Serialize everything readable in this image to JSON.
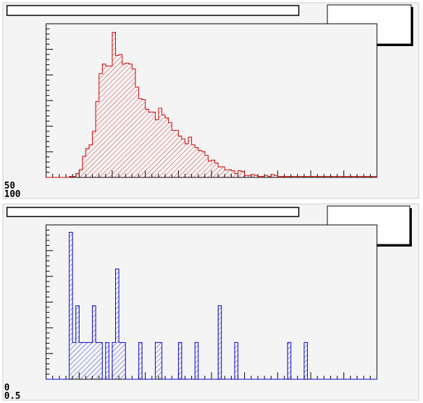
{
  "colors": {
    "pad_background": "#f4f4f4",
    "frame": "#000000",
    "top_series": "#cc0000",
    "bottom_series": "#0000cc"
  },
  "chart_data": [
    {
      "type": "bar",
      "title": "",
      "xlabel": "",
      "ylabel": "",
      "fill_style": "hatched",
      "tick_labels": [
        "50",
        "100"
      ],
      "values": [
        0,
        0,
        0,
        0,
        0,
        0,
        0,
        1,
        1,
        4,
        8,
        22,
        30,
        34,
        48,
        79,
        108,
        118,
        116,
        116,
        151,
        127,
        128,
        118,
        119,
        118,
        113,
        94,
        82,
        81,
        71,
        68,
        68,
        60,
        72,
        65,
        62,
        57,
        49,
        49,
        43,
        40,
        35,
        42,
        34,
        31,
        28,
        27,
        23,
        17,
        18,
        15,
        11,
        11,
        8,
        8,
        7,
        4,
        7,
        6,
        2,
        2,
        3,
        2,
        1,
        1,
        2,
        1,
        3,
        2,
        1,
        1,
        1,
        1,
        1,
        1,
        1,
        1,
        1,
        1,
        1,
        1,
        1,
        1,
        1,
        1,
        1,
        1,
        1,
        1,
        1,
        1,
        1,
        1,
        1,
        1,
        1,
        1,
        1,
        1
      ],
      "ylim": [
        0,
        160
      ]
    },
    {
      "type": "bar",
      "title": "",
      "xlabel": "",
      "ylabel": "",
      "fill_style": "hatched",
      "tick_labels": [
        "0",
        "0.5"
      ],
      "values": [
        0,
        0,
        0,
        0,
        0,
        0,
        0,
        8,
        2,
        4,
        2,
        2,
        2,
        2,
        4,
        2,
        2,
        0,
        2,
        0,
        2,
        6,
        2,
        2,
        0,
        0,
        0,
        0,
        2,
        0,
        0,
        0,
        0,
        2,
        2,
        0,
        0,
        0,
        0,
        0,
        2,
        0,
        0,
        0,
        0,
        2,
        0,
        0,
        0,
        0,
        0,
        0,
        4,
        0,
        0,
        0,
        0,
        2,
        0,
        0,
        0,
        0,
        0,
        0,
        0,
        0,
        0,
        0,
        0,
        0,
        0,
        0,
        0,
        2,
        0,
        0,
        0,
        0,
        2,
        0,
        0,
        0,
        0,
        0,
        0,
        0,
        0,
        0,
        0,
        0,
        0,
        0,
        0,
        0,
        0,
        0,
        0,
        0,
        0,
        0
      ],
      "ylim": [
        0,
        8.4
      ]
    }
  ]
}
